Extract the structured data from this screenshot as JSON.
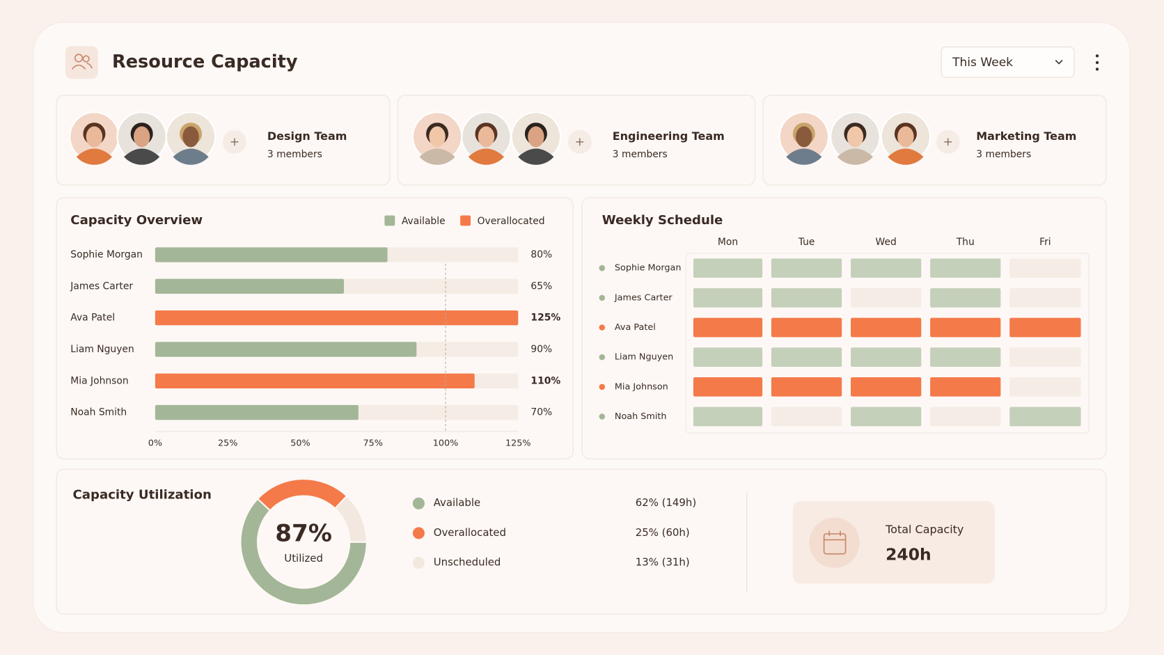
{
  "header": {
    "title": "Resource Capacity",
    "period": "This Week"
  },
  "teams": [
    {
      "name": "Design Team",
      "members": "3 members"
    },
    {
      "name": "Engineering Team",
      "members": "3 members"
    },
    {
      "name": "Marketing Team",
      "members": "3 members"
    }
  ],
  "chart_data": [
    {
      "type": "hbar",
      "title": "Capacity Overview",
      "legend": [
        {
          "name": "Available",
          "color": "#a3b697"
        },
        {
          "name": "Overallocated",
          "color": "#f47a4a"
        }
      ],
      "categories": [
        "Sophie Morgan",
        "James Carter",
        "Ava Patel",
        "Liam Nguyen",
        "Mia Johnson",
        "Noah Smith"
      ],
      "values": [
        80,
        65,
        125,
        90,
        110,
        70
      ],
      "value_labels": [
        "80%",
        "65%",
        "125%",
        "90%",
        "110%",
        "70%"
      ],
      "colors": [
        "#a3b697",
        "#a3b697",
        "#f47a4a",
        "#a3b697",
        "#f47a4a",
        "#a3b697"
      ],
      "xlim": [
        0,
        125
      ],
      "xticks": [
        {
          "value": 0,
          "label": "0%"
        },
        {
          "value": 25,
          "label": "25%"
        },
        {
          "value": 50,
          "label": "50%"
        },
        {
          "value": 75,
          "label": "75%"
        },
        {
          "value": 100,
          "label": "100%"
        },
        {
          "value": 125,
          "label": "125%"
        }
      ],
      "reference_line": 100
    },
    {
      "type": "donut",
      "title": "Capacity Utilization",
      "categories": [
        "Available",
        "Overallocated",
        "Unscheduled"
      ],
      "values": [
        62,
        25,
        13
      ],
      "value_labels": [
        "62% (149h)",
        "25% (60h)",
        "13% (31h)"
      ],
      "colors": [
        "#a3b697",
        "#f47a4a",
        "#f3e8df"
      ],
      "start_angle": 90,
      "center_label": "87%",
      "center_caption": "Utilized"
    }
  ],
  "schedule": {
    "title": "Weekly Schedule",
    "days": [
      "Mon",
      "Tue",
      "Wed",
      "Thu",
      "Fri"
    ],
    "state_colors": {
      "available": "#c5d0bb",
      "overallocated": "#f47a4a",
      "unscheduled": "#f5ece5"
    },
    "rows": [
      {
        "name": "Sophie Morgan",
        "dot": "#a3b697",
        "cells": [
          "available",
          "available",
          "available",
          "available",
          "unscheduled"
        ]
      },
      {
        "name": "James Carter",
        "dot": "#a3b697",
        "cells": [
          "available",
          "available",
          "unscheduled",
          "available",
          "unscheduled"
        ]
      },
      {
        "name": "Ava Patel",
        "dot": "#f47a4a",
        "cells": [
          "overallocated",
          "overallocated",
          "overallocated",
          "overallocated",
          "overallocated"
        ]
      },
      {
        "name": "Liam Nguyen",
        "dot": "#a3b697",
        "cells": [
          "available",
          "available",
          "available",
          "available",
          "unscheduled"
        ]
      },
      {
        "name": "Mia Johnson",
        "dot": "#f47a4a",
        "cells": [
          "overallocated",
          "overallocated",
          "overallocated",
          "overallocated",
          "unscheduled"
        ]
      },
      {
        "name": "Noah Smith",
        "dot": "#a3b697",
        "cells": [
          "available",
          "unscheduled",
          "available",
          "unscheduled",
          "available"
        ]
      }
    ]
  },
  "total": {
    "label": "Total Capacity",
    "value": "240h"
  }
}
